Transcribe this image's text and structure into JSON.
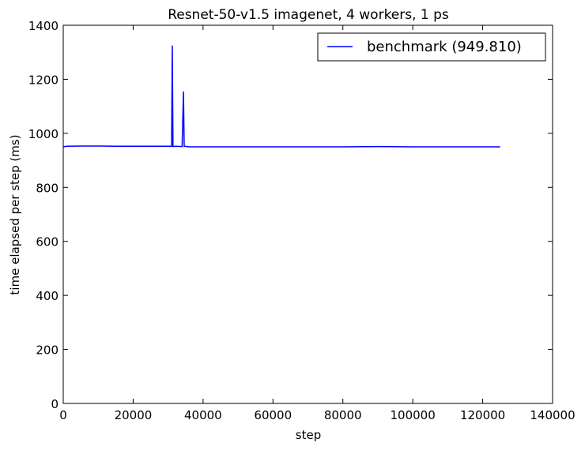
{
  "chart_data": {
    "type": "line",
    "title": "Resnet-50-v1.5 imagenet, 4 workers, 1 ps",
    "xlabel": "step",
    "ylabel": "time elapsed per step (ms)",
    "xlim": [
      0,
      140000
    ],
    "ylim": [
      0,
      1400
    ],
    "xticks": [
      0,
      20000,
      40000,
      60000,
      80000,
      100000,
      120000,
      140000
    ],
    "yticks": [
      0,
      200,
      400,
      600,
      800,
      1000,
      1200,
      1400
    ],
    "grid": false,
    "legend_position": "top-right",
    "series": [
      {
        "name": "benchmark (949.810)",
        "color": "#0000ff",
        "x": [
          0,
          1000,
          5000,
          10000,
          15000,
          20000,
          25000,
          30000,
          31000,
          31200,
          31400,
          32000,
          34000,
          34400,
          34600,
          34800,
          36000,
          40000,
          50000,
          60000,
          70000,
          80000,
          90000,
          100000,
          110000,
          120000,
          125000
        ],
        "y": [
          950,
          952,
          953,
          953,
          952,
          952,
          952,
          952,
          952,
          1325,
          951,
          952,
          951,
          1155,
          951,
          952,
          950,
          950,
          950,
          950,
          950,
          950,
          951,
          950,
          950,
          950,
          950
        ]
      }
    ]
  }
}
